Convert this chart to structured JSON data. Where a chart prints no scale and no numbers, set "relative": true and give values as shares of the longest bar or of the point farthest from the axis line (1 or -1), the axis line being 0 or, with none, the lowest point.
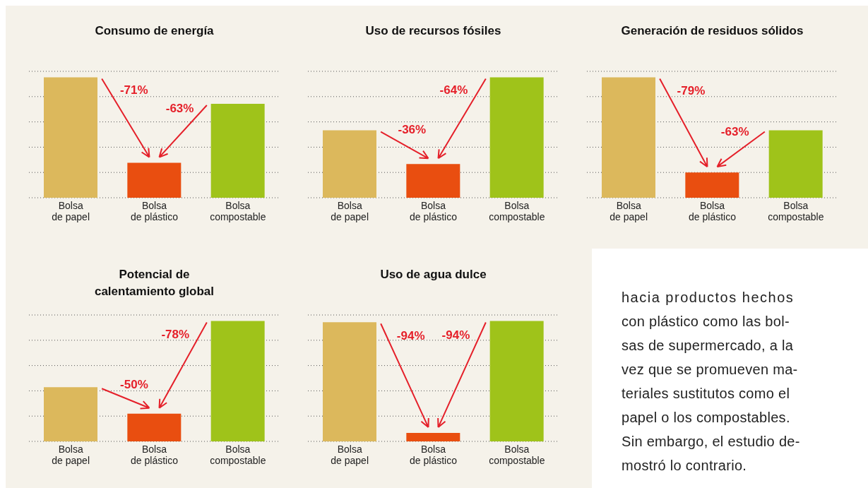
{
  "chart_data": [
    {
      "type": "bar",
      "title": "Consumo de energía",
      "categories": [
        "Bolsa de papel",
        "Bolsa de plástico",
        "Bolsa compostable"
      ],
      "values": [
        1,
        0.29,
        0.78
      ],
      "colors": [
        "#dcb85c",
        "#e94e10",
        "#9fc31a"
      ],
      "relative": true,
      "grid": "y",
      "annotations": [
        "-71%",
        "-63%"
      ]
    },
    {
      "type": "bar",
      "title": "Uso de recursos fósiles",
      "categories": [
        "Bolsa de papel",
        "Bolsa de plástico",
        "Bolsa compostable"
      ],
      "values": [
        0.56,
        0.28,
        1
      ],
      "colors": [
        "#dcb85c",
        "#e94e10",
        "#9fc31a"
      ],
      "relative": true,
      "grid": "y",
      "annotations": [
        "-36%",
        "-64%"
      ]
    },
    {
      "type": "bar",
      "title": "Generación de residuos sólidos",
      "categories": [
        "Bolsa de papel",
        "Bolsa de plástico",
        "Bolsa compostable"
      ],
      "values": [
        1,
        0.21,
        0.56
      ],
      "colors": [
        "#dcb85c",
        "#e94e10",
        "#9fc31a"
      ],
      "relative": true,
      "grid": "y",
      "annotations": [
        "-79%",
        "-63%"
      ]
    },
    {
      "type": "bar",
      "title": "Potencial de\ncalentamiento global",
      "categories": [
        "Bolsa de papel",
        "Bolsa de plástico",
        "Bolsa compostable"
      ],
      "values": [
        0.45,
        0.23,
        1
      ],
      "colors": [
        "#dcb85c",
        "#e94e10",
        "#9fc31a"
      ],
      "relative": true,
      "grid": "y",
      "annotations": [
        "-50%",
        "-78%"
      ]
    },
    {
      "type": "bar",
      "title": "Uso de agua dulce",
      "categories": [
        "Bolsa de papel",
        "Bolsa de plástico",
        "Bolsa compostable"
      ],
      "values": [
        0.99,
        0.07,
        1
      ],
      "colors": [
        "#dcb85c",
        "#e94e10",
        "#9fc31a"
      ],
      "relative": true,
      "grid": "y",
      "annotations": [
        "-94%",
        "-94%"
      ]
    },
    {
      "type": "other",
      "annotations": [
        "hacia productos hechos",
        "con plástico como las bol-",
        "sas de supermercado, a la",
        "vez que se promueven ma-",
        "teriales sustitutos como el",
        "papel o los compostables.",
        "Sin embargo, el estudio de-",
        "mostró lo contrario."
      ]
    }
  ]
}
